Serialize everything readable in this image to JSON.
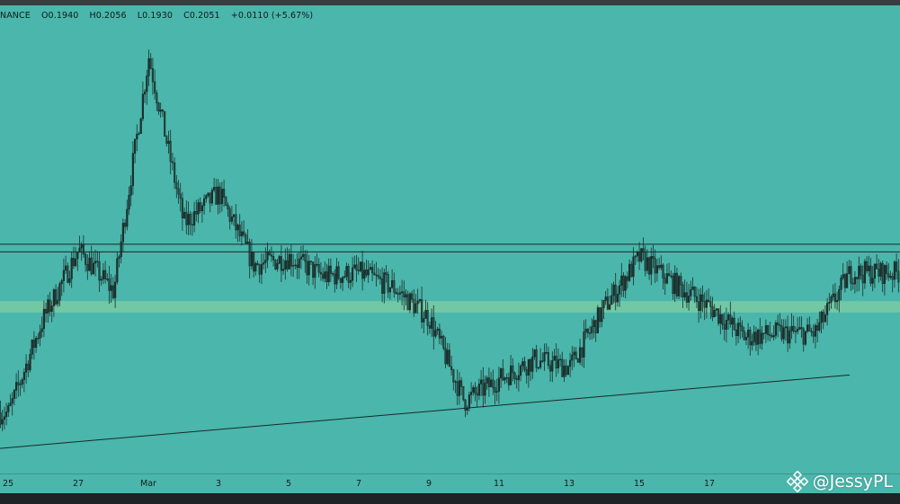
{
  "header": {
    "exchange_fragment": "NANCE",
    "open": "O0.1940",
    "high": "H0.2056",
    "low": "L0.1930",
    "close": "C0.2051",
    "change": "+0.0110 (+5.67%)"
  },
  "watermark": {
    "handle": "@JessyPL",
    "icon": "binance-logo-icon"
  },
  "colors": {
    "background": "#4bb6ab",
    "candle": "#1a2f2c",
    "support_zone": "#79cba3",
    "bottom_bar": "#1e2326"
  },
  "chart_data": {
    "type": "candlestick",
    "title": "",
    "xlabel": "",
    "ylabel": "",
    "grid": false,
    "x_ticks": [
      "25",
      "27",
      "Mar",
      "3",
      "5",
      "7",
      "9",
      "11",
      "13",
      "15",
      "17"
    ],
    "ylim": [
      0.155,
      0.28
    ],
    "approx_close_path": [
      {
        "x": "25",
        "y": 0.171
      },
      {
        "x": "26",
        "y": 0.196
      },
      {
        "x": "27",
        "y": 0.214
      },
      {
        "x": "28",
        "y": 0.203
      },
      {
        "x": "Mar",
        "y": 0.265
      },
      {
        "x": "2",
        "y": 0.221
      },
      {
        "x": "3",
        "y": 0.229
      },
      {
        "x": "4",
        "y": 0.21
      },
      {
        "x": "5",
        "y": 0.212
      },
      {
        "x": "6",
        "y": 0.207
      },
      {
        "x": "7",
        "y": 0.208
      },
      {
        "x": "8",
        "y": 0.204
      },
      {
        "x": "9",
        "y": 0.196
      },
      {
        "x": "10",
        "y": 0.174
      },
      {
        "x": "11",
        "y": 0.18
      },
      {
        "x": "12",
        "y": 0.185
      },
      {
        "x": "13",
        "y": 0.183
      },
      {
        "x": "14",
        "y": 0.199
      },
      {
        "x": "15",
        "y": 0.212
      },
      {
        "x": "16",
        "y": 0.205
      },
      {
        "x": "17",
        "y": 0.199
      },
      {
        "x": "18",
        "y": 0.191
      },
      {
        "x": "19",
        "y": 0.192
      },
      {
        "x": "20",
        "y": 0.192
      },
      {
        "x": "21",
        "y": 0.208
      }
    ],
    "horizontal_levels": [
      0.2155,
      0.2135
    ],
    "support_zone": [
      0.1975,
      0.2005
    ],
    "trendline": {
      "from": {
        "x": "24",
        "y": 0.161
      },
      "to": {
        "x": "21",
        "y": 0.181
      }
    }
  }
}
